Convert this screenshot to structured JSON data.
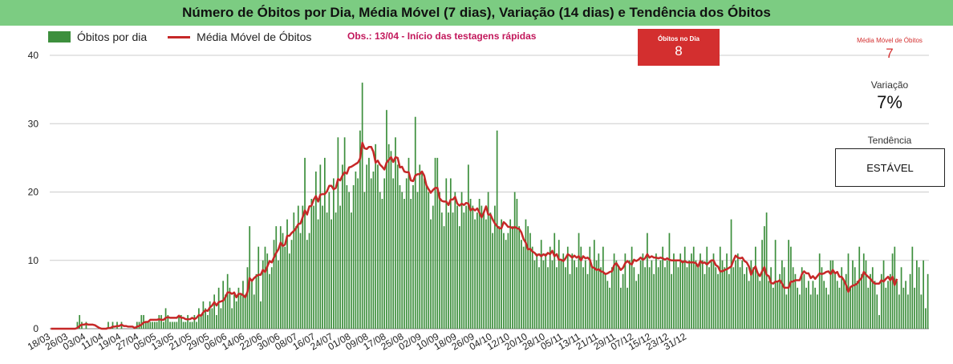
{
  "title": "Número de Óbitos por Dia, Média Móvel (7 dias), Variação (14 dias) e Tendência dos Óbitos",
  "legend": {
    "bar_label": "Óbitos por dia",
    "line_label": "Média Móvel de Óbitos"
  },
  "note": "Obs.: 13/04 - Início das testagens rápidas",
  "kpi": {
    "obitos_dia_label": "Óbitos no Dia",
    "obitos_dia_value": "8",
    "media_movel_label": "Média Móvel de Óbitos",
    "media_movel_value": "7",
    "variacao_label": "Variação",
    "variacao_value": "7%",
    "tendencia_label": "Tendência",
    "tendencia_value": "ESTÁVEL"
  },
  "colors": {
    "title_bg": "#7ccc82",
    "bars": "#3d8f3d",
    "line": "#c62828",
    "kpi_box": "#d32f2f",
    "grid": "#cccccc"
  },
  "chart_data": {
    "type": "bar",
    "start_date": "18/03",
    "x_tick_labels": [
      "18/03",
      "26/03",
      "03/04",
      "11/04",
      "19/04",
      "27/04",
      "05/05",
      "13/05",
      "21/05",
      "29/05",
      "06/06",
      "14/06",
      "22/06",
      "30/06",
      "08/07",
      "16/07",
      "24/07",
      "01/08",
      "09/08",
      "17/08",
      "25/08",
      "02/09",
      "10/09",
      "18/09",
      "26/09",
      "04/10",
      "12/10",
      "20/10",
      "28/10",
      "05/11",
      "13/11",
      "21/11",
      "29/11",
      "07/12",
      "15/12",
      "23/12",
      "31/12"
    ],
    "ylim": [
      0,
      40
    ],
    "yticks": [
      0,
      10,
      20,
      30,
      40
    ],
    "grid": true,
    "series": [
      {
        "name": "Óbitos por dia",
        "type": "bar",
        "values": [
          0,
          0,
          0,
          0,
          0,
          0,
          0,
          0,
          0,
          0,
          0,
          0,
          1,
          2,
          1,
          0,
          1,
          0,
          0,
          0,
          0,
          0,
          0,
          0,
          0,
          0,
          1,
          0,
          1,
          0,
          1,
          0,
          1,
          0,
          0,
          0,
          0,
          0,
          0,
          1,
          1,
          2,
          2,
          1,
          1,
          1,
          1,
          1,
          1,
          2,
          2,
          1,
          3,
          2,
          1,
          1,
          1,
          1,
          2,
          2,
          1,
          1,
          2,
          1,
          1,
          2,
          1,
          3,
          2,
          4,
          3,
          2,
          4,
          3,
          5,
          2,
          6,
          3,
          7,
          5,
          8,
          6,
          3,
          5,
          4,
          6,
          5,
          7,
          5,
          9,
          15,
          7,
          5,
          8,
          12,
          4,
          10,
          12,
          11,
          8,
          9,
          13,
          15,
          10,
          15,
          14,
          12,
          16,
          11,
          13,
          17,
          15,
          18,
          14,
          18,
          25,
          13,
          14,
          19,
          18,
          23,
          16,
          24,
          18,
          25,
          17,
          20,
          16,
          22,
          17,
          28,
          18,
          24,
          28,
          21,
          20,
          17,
          21,
          23,
          22,
          29,
          36,
          20,
          24,
          25,
          22,
          23,
          27,
          24,
          20,
          19,
          22,
          32,
          27,
          26,
          22,
          28,
          24,
          21,
          20,
          19,
          22,
          25,
          19,
          21,
          31,
          20,
          24,
          23,
          22,
          21,
          20,
          16,
          18,
          25,
          25,
          20,
          17,
          15,
          22,
          17,
          22,
          17,
          20,
          18,
          15,
          20,
          17,
          18,
          24,
          19,
          18,
          16,
          17,
          19,
          18,
          17,
          16,
          20,
          17,
          14,
          18,
          29,
          15,
          16,
          14,
          13,
          14,
          16,
          15,
          20,
          19,
          15,
          13,
          12,
          16,
          15,
          14,
          12,
          10,
          11,
          9,
          13,
          10,
          11,
          9,
          12,
          10,
          14,
          9,
          13,
          10,
          11,
          9,
          12,
          8,
          11,
          10,
          9,
          14,
          12,
          9,
          10,
          8,
          12,
          9,
          13,
          10,
          11,
          9,
          12,
          8,
          7,
          6,
          9,
          11,
          10,
          9,
          6,
          8,
          11,
          6,
          10,
          12,
          9,
          7,
          8,
          10,
          11,
          9,
          14,
          9,
          10,
          8,
          11,
          9,
          10,
          12,
          9,
          10,
          14,
          8,
          11,
          10,
          9,
          11,
          10,
          12,
          9,
          10,
          11,
          12,
          10,
          9,
          11,
          10,
          8,
          12,
          9,
          10,
          11,
          9,
          8,
          12,
          10,
          9,
          11,
          8,
          16,
          9,
          10,
          11,
          9,
          10,
          8,
          9,
          7,
          10,
          9,
          12,
          8,
          7,
          13,
          15,
          17,
          7,
          9,
          6,
          13,
          7,
          8,
          10,
          9,
          5,
          13,
          12,
          9,
          8,
          6,
          5,
          9,
          8,
          6,
          7,
          5,
          7,
          6,
          5,
          11,
          9,
          7,
          6,
          5,
          10,
          10,
          8,
          7,
          6,
          9,
          7,
          8,
          11,
          6,
          10,
          9,
          7,
          12,
          8,
          11,
          10,
          6,
          8,
          9,
          7,
          5,
          2,
          8,
          10,
          6,
          7,
          8,
          11,
          12,
          7,
          5,
          9,
          6,
          7,
          5,
          8,
          12,
          6,
          10,
          9,
          5,
          10,
          3,
          8
        ]
      },
      {
        "name": "Média Móvel de Óbitos",
        "type": "line",
        "values": [
          0,
          0,
          0,
          0,
          0,
          0,
          0,
          0,
          0,
          0,
          0,
          0,
          0.1,
          0.4,
          0.6,
          0.6,
          0.7,
          0.6,
          0.6,
          0.6,
          0.5,
          0.3,
          0.1,
          0,
          0,
          0,
          0.1,
          0.1,
          0.3,
          0.3,
          0.4,
          0.4,
          0.6,
          0.4,
          0.4,
          0.3,
          0.3,
          0.3,
          0.1,
          0.3,
          0.4,
          0.6,
          0.9,
          1,
          1,
          1.3,
          1.3,
          1.3,
          1.3,
          1.4,
          1.3,
          1.3,
          1.6,
          1.7,
          1.6,
          1.6,
          1.6,
          1.6,
          1.9,
          1.6,
          1.6,
          1.4,
          1.4,
          1.4,
          1.6,
          1.4,
          1.6,
          2,
          1.9,
          2.4,
          2.7,
          2.6,
          3.1,
          3.4,
          3.9,
          3.4,
          3.9,
          4,
          4.1,
          4.6,
          5.3,
          5.3,
          5.1,
          5.3,
          4.6,
          5.1,
          5.1,
          4.9,
          4.6,
          5.4,
          7.4,
          7,
          7.4,
          7.7,
          7.9,
          7.9,
          8.6,
          8.3,
          9.1,
          9.9,
          9.7,
          10.4,
          11.1,
          11.6,
          12.6,
          12.1,
          12.3,
          13.6,
          13.6,
          14,
          14.3,
          14.7,
          15.3,
          15.4,
          16.3,
          17.3,
          16.7,
          17.9,
          18,
          18.9,
          19.4,
          18.6,
          19.6,
          19.7,
          19.7,
          20.1,
          20.9,
          20.9,
          20.4,
          20.6,
          21.9,
          21.7,
          22.4,
          22.9,
          22.7,
          23.6,
          23.7,
          23.9,
          24.1,
          24.3,
          24.9,
          27.2,
          26.4,
          26.3,
          26.6,
          26.6,
          25.9,
          24.3,
          24.6,
          24.0,
          23.7,
          23.3,
          24.3,
          24.7,
          25.1,
          24.4,
          25.1,
          25.0,
          23.6,
          23.7,
          23.0,
          22.9,
          22.9,
          21.7,
          21.6,
          22.4,
          22.6,
          22.6,
          23.0,
          22.4,
          21.0,
          20.4,
          19.9,
          20.3,
          20.6,
          20.6,
          19.1,
          18.7,
          18.6,
          18.6,
          18.1,
          18.9,
          18.9,
          19.3,
          18.3,
          18.0,
          18.3,
          18.1,
          18.4,
          18.3,
          17.3,
          17.6,
          17.3,
          17.6,
          17.0,
          16.3,
          17.0,
          17.9,
          16.7,
          16.7,
          16.0,
          15.4,
          15.0,
          14.7,
          14.7,
          15.6,
          15.3,
          14.9,
          14.9,
          14.7,
          14.9,
          14.7,
          14.6,
          14.1,
          13.1,
          12.6,
          11.6,
          11.7,
          11.3,
          11.1,
          10.7,
          10.9,
          10.6,
          10.9,
          10.7,
          11.1,
          10.9,
          11.4,
          10.6,
          10.9,
          10.1,
          10.1,
          9.9,
          10.3,
          10.9,
          10.7,
          10.4,
          10.7,
          10.4,
          10.6,
          10.0,
          10.6,
          10.3,
          10.4,
          10.1,
          9.0,
          8.9,
          8.6,
          8.7,
          8.4,
          8.3,
          8.0,
          8.1,
          8.3,
          8.4,
          9.3,
          9.6,
          9.1,
          8.6,
          8.9,
          9.6,
          9.9,
          9.6,
          9.4,
          10.1,
          9.9,
          10.1,
          10.4,
          10.1,
          10.3,
          10.9,
          10.4,
          10.6,
          10.4,
          10.4,
          10.3,
          10.4,
          10.3,
          10.1,
          10.3,
          10.1,
          10.0,
          10.0,
          10.0,
          10.0,
          10.0,
          9.7,
          9.9,
          9.7,
          9.7,
          9.7,
          9.7,
          9.6,
          9.1,
          9.9,
          9.6,
          9.7,
          9.4,
          9.7,
          10.0,
          10.0,
          9.3,
          9.1,
          8.4,
          8.4,
          8.6,
          8.7,
          8.9,
          9.1,
          10.0,
          10.7,
          10.4,
          10.3,
          10.4,
          9.9,
          9.7,
          9.1,
          7.9,
          8.7,
          9.1,
          8.1,
          7.7,
          8.4,
          9.0,
          7.9,
          7.7,
          6.7,
          6.6,
          6.9,
          6.9,
          7.1,
          6.6,
          6.0,
          6.0,
          6.0,
          6.9,
          6.9,
          7.1,
          7.1,
          7.1,
          8.0,
          8.4,
          8.1,
          8.1,
          7.4,
          7.7,
          7.3,
          7.7,
          8.1,
          8.0,
          8.1,
          8.3,
          8.4,
          8.0,
          8.6,
          8.1,
          8.3,
          7.6,
          7.6,
          7.1,
          6.4,
          5.4,
          6.1,
          6.3,
          6.4,
          6.6,
          7.1,
          7.4,
          8.3,
          7.9,
          7.6,
          7.3,
          6.9,
          6.6,
          6.6,
          6.6,
          7.1,
          6.9,
          7.3,
          7.6,
          7.1,
          7.6,
          6.4,
          7.3
        ]
      }
    ]
  }
}
